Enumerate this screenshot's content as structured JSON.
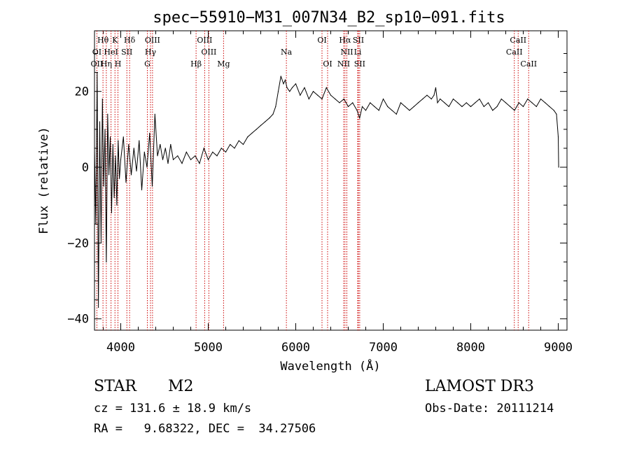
{
  "chart_data": {
    "type": "line",
    "title": "spec−55910−M31_007N34_B2_sp10−091.fits",
    "xlabel": "Wavelength (Å)",
    "ylabel": "Flux (relative)",
    "xlim": [
      3700,
      9100
    ],
    "ylim": [
      -43,
      36
    ],
    "x_ticks": [
      4000,
      5000,
      6000,
      7000,
      8000,
      9000
    ],
    "x_tick_labels": [
      "4000",
      "5000",
      "6000",
      "7000",
      "8000",
      "9000"
    ],
    "y_ticks": [
      -40,
      -20,
      0,
      20
    ],
    "y_tick_labels": [
      "−40",
      "−20",
      "0",
      "20"
    ],
    "series": [
      {
        "name": "flux",
        "x": [
          3700,
          3715,
          3730,
          3745,
          3760,
          3775,
          3790,
          3805,
          3820,
          3835,
          3850,
          3865,
          3880,
          3895,
          3910,
          3925,
          3940,
          3955,
          3970,
          3985,
          4000,
          4030,
          4060,
          4090,
          4120,
          4150,
          4180,
          4210,
          4240,
          4270,
          4300,
          4330,
          4360,
          4390,
          4420,
          4450,
          4480,
          4510,
          4540,
          4570,
          4600,
          4650,
          4700,
          4750,
          4800,
          4850,
          4900,
          4950,
          5000,
          5050,
          5100,
          5150,
          5200,
          5250,
          5300,
          5350,
          5400,
          5450,
          5500,
          5550,
          5600,
          5650,
          5700,
          5740,
          5770,
          5800,
          5830,
          5860,
          5880,
          5900,
          5930,
          5960,
          6000,
          6050,
          6100,
          6150,
          6200,
          6250,
          6300,
          6350,
          6400,
          6450,
          6500,
          6550,
          6600,
          6650,
          6700,
          6730,
          6760,
          6800,
          6850,
          6900,
          6950,
          7000,
          7050,
          7100,
          7150,
          7200,
          7250,
          7300,
          7350,
          7400,
          7450,
          7500,
          7550,
          7580,
          7600,
          7620,
          7650,
          7700,
          7750,
          7800,
          7850,
          7900,
          7950,
          8000,
          8050,
          8100,
          8150,
          8200,
          8250,
          8300,
          8350,
          8400,
          8450,
          8500,
          8550,
          8600,
          8650,
          8700,
          8750,
          8800,
          8850,
          8900,
          8950,
          8980,
          9000,
          9005
        ],
        "values": [
          5,
          -15,
          25,
          -37,
          12,
          -20,
          18,
          -5,
          10,
          -25,
          14,
          -2,
          8,
          -12,
          6,
          -8,
          3,
          -10,
          7,
          -3,
          2,
          8,
          -4,
          6,
          -2,
          5,
          -1,
          7,
          -6,
          4,
          0,
          9,
          -5,
          14,
          3,
          6,
          2,
          5,
          1,
          6,
          2,
          3,
          1,
          4,
          2,
          3,
          1,
          5,
          2,
          4,
          3,
          5,
          4,
          6,
          5,
          7,
          6,
          8,
          9,
          10,
          11,
          12,
          13,
          14,
          16,
          20,
          24,
          22,
          23,
          21,
          20,
          21,
          22,
          19,
          21,
          18,
          20,
          19,
          18,
          21,
          19,
          18,
          17,
          18,
          16,
          17,
          15,
          13,
          16,
          15,
          17,
          16,
          15,
          18,
          16,
          15,
          14,
          17,
          16,
          15,
          16,
          17,
          18,
          19,
          18,
          19,
          21,
          17,
          18,
          17,
          16,
          18,
          17,
          16,
          17,
          16,
          17,
          18,
          16,
          17,
          15,
          16,
          18,
          17,
          16,
          15,
          17,
          16,
          18,
          17,
          16,
          18,
          17,
          16,
          15,
          14,
          8,
          0
        ]
      }
    ],
    "spectral_lines": [
      {
        "label": "Hθ",
        "x": 3797,
        "row": 1
      },
      {
        "label": "K",
        "x": 3934,
        "row": 1
      },
      {
        "label": "Hδ",
        "x": 4101,
        "row": 1
      },
      {
        "label": "OIII",
        "x": 4363,
        "row": 1
      },
      {
        "label": "OIII",
        "x": 4959,
        "row": 1
      },
      {
        "label": "OI",
        "x": 6300,
        "row": 1
      },
      {
        "label": "Hα",
        "x": 6563,
        "row": 1
      },
      {
        "label": "SII",
        "x": 6716,
        "row": 1
      },
      {
        "label": "CaII",
        "x": 8542,
        "row": 1
      },
      {
        "label": "OI",
        "x": 3727,
        "row": 2
      },
      {
        "label": "HeI",
        "x": 3889,
        "row": 2
      },
      {
        "label": "SII",
        "x": 4070,
        "row": 2
      },
      {
        "label": "Hγ",
        "x": 4340,
        "row": 2
      },
      {
        "label": "OIII",
        "x": 5007,
        "row": 2
      },
      {
        "label": "Na",
        "x": 5893,
        "row": 2
      },
      {
        "label": "NII",
        "x": 6584,
        "row": 2
      },
      {
        "label": "Li",
        "x": 6708,
        "row": 2
      },
      {
        "label": "CaII",
        "x": 8498,
        "row": 2
      },
      {
        "label": "OII",
        "x": 3727,
        "row": 3
      },
      {
        "label": "Hη",
        "x": 3835,
        "row": 3
      },
      {
        "label": "H",
        "x": 3968,
        "row": 3
      },
      {
        "label": "G",
        "x": 4304,
        "row": 3
      },
      {
        "label": "Hβ",
        "x": 4861,
        "row": 3
      },
      {
        "label": "Mg",
        "x": 5175,
        "row": 3
      },
      {
        "label": "OI",
        "x": 6364,
        "row": 3
      },
      {
        "label": "NII",
        "x": 6548,
        "row": 3
      },
      {
        "label": "SII",
        "x": 6731,
        "row": 3
      },
      {
        "label": "CaII",
        "x": 8662,
        "row": 3
      }
    ],
    "line_color": "#cc0000"
  },
  "info": {
    "object_class": "STAR",
    "subclass": "M2",
    "survey": "LAMOST DR3",
    "cz": "cz = 131.6 ± 18.9 km/s",
    "obs_date": "Obs-Date: 20111214",
    "coords": "RA =   9.68322, DEC =  34.27506"
  }
}
